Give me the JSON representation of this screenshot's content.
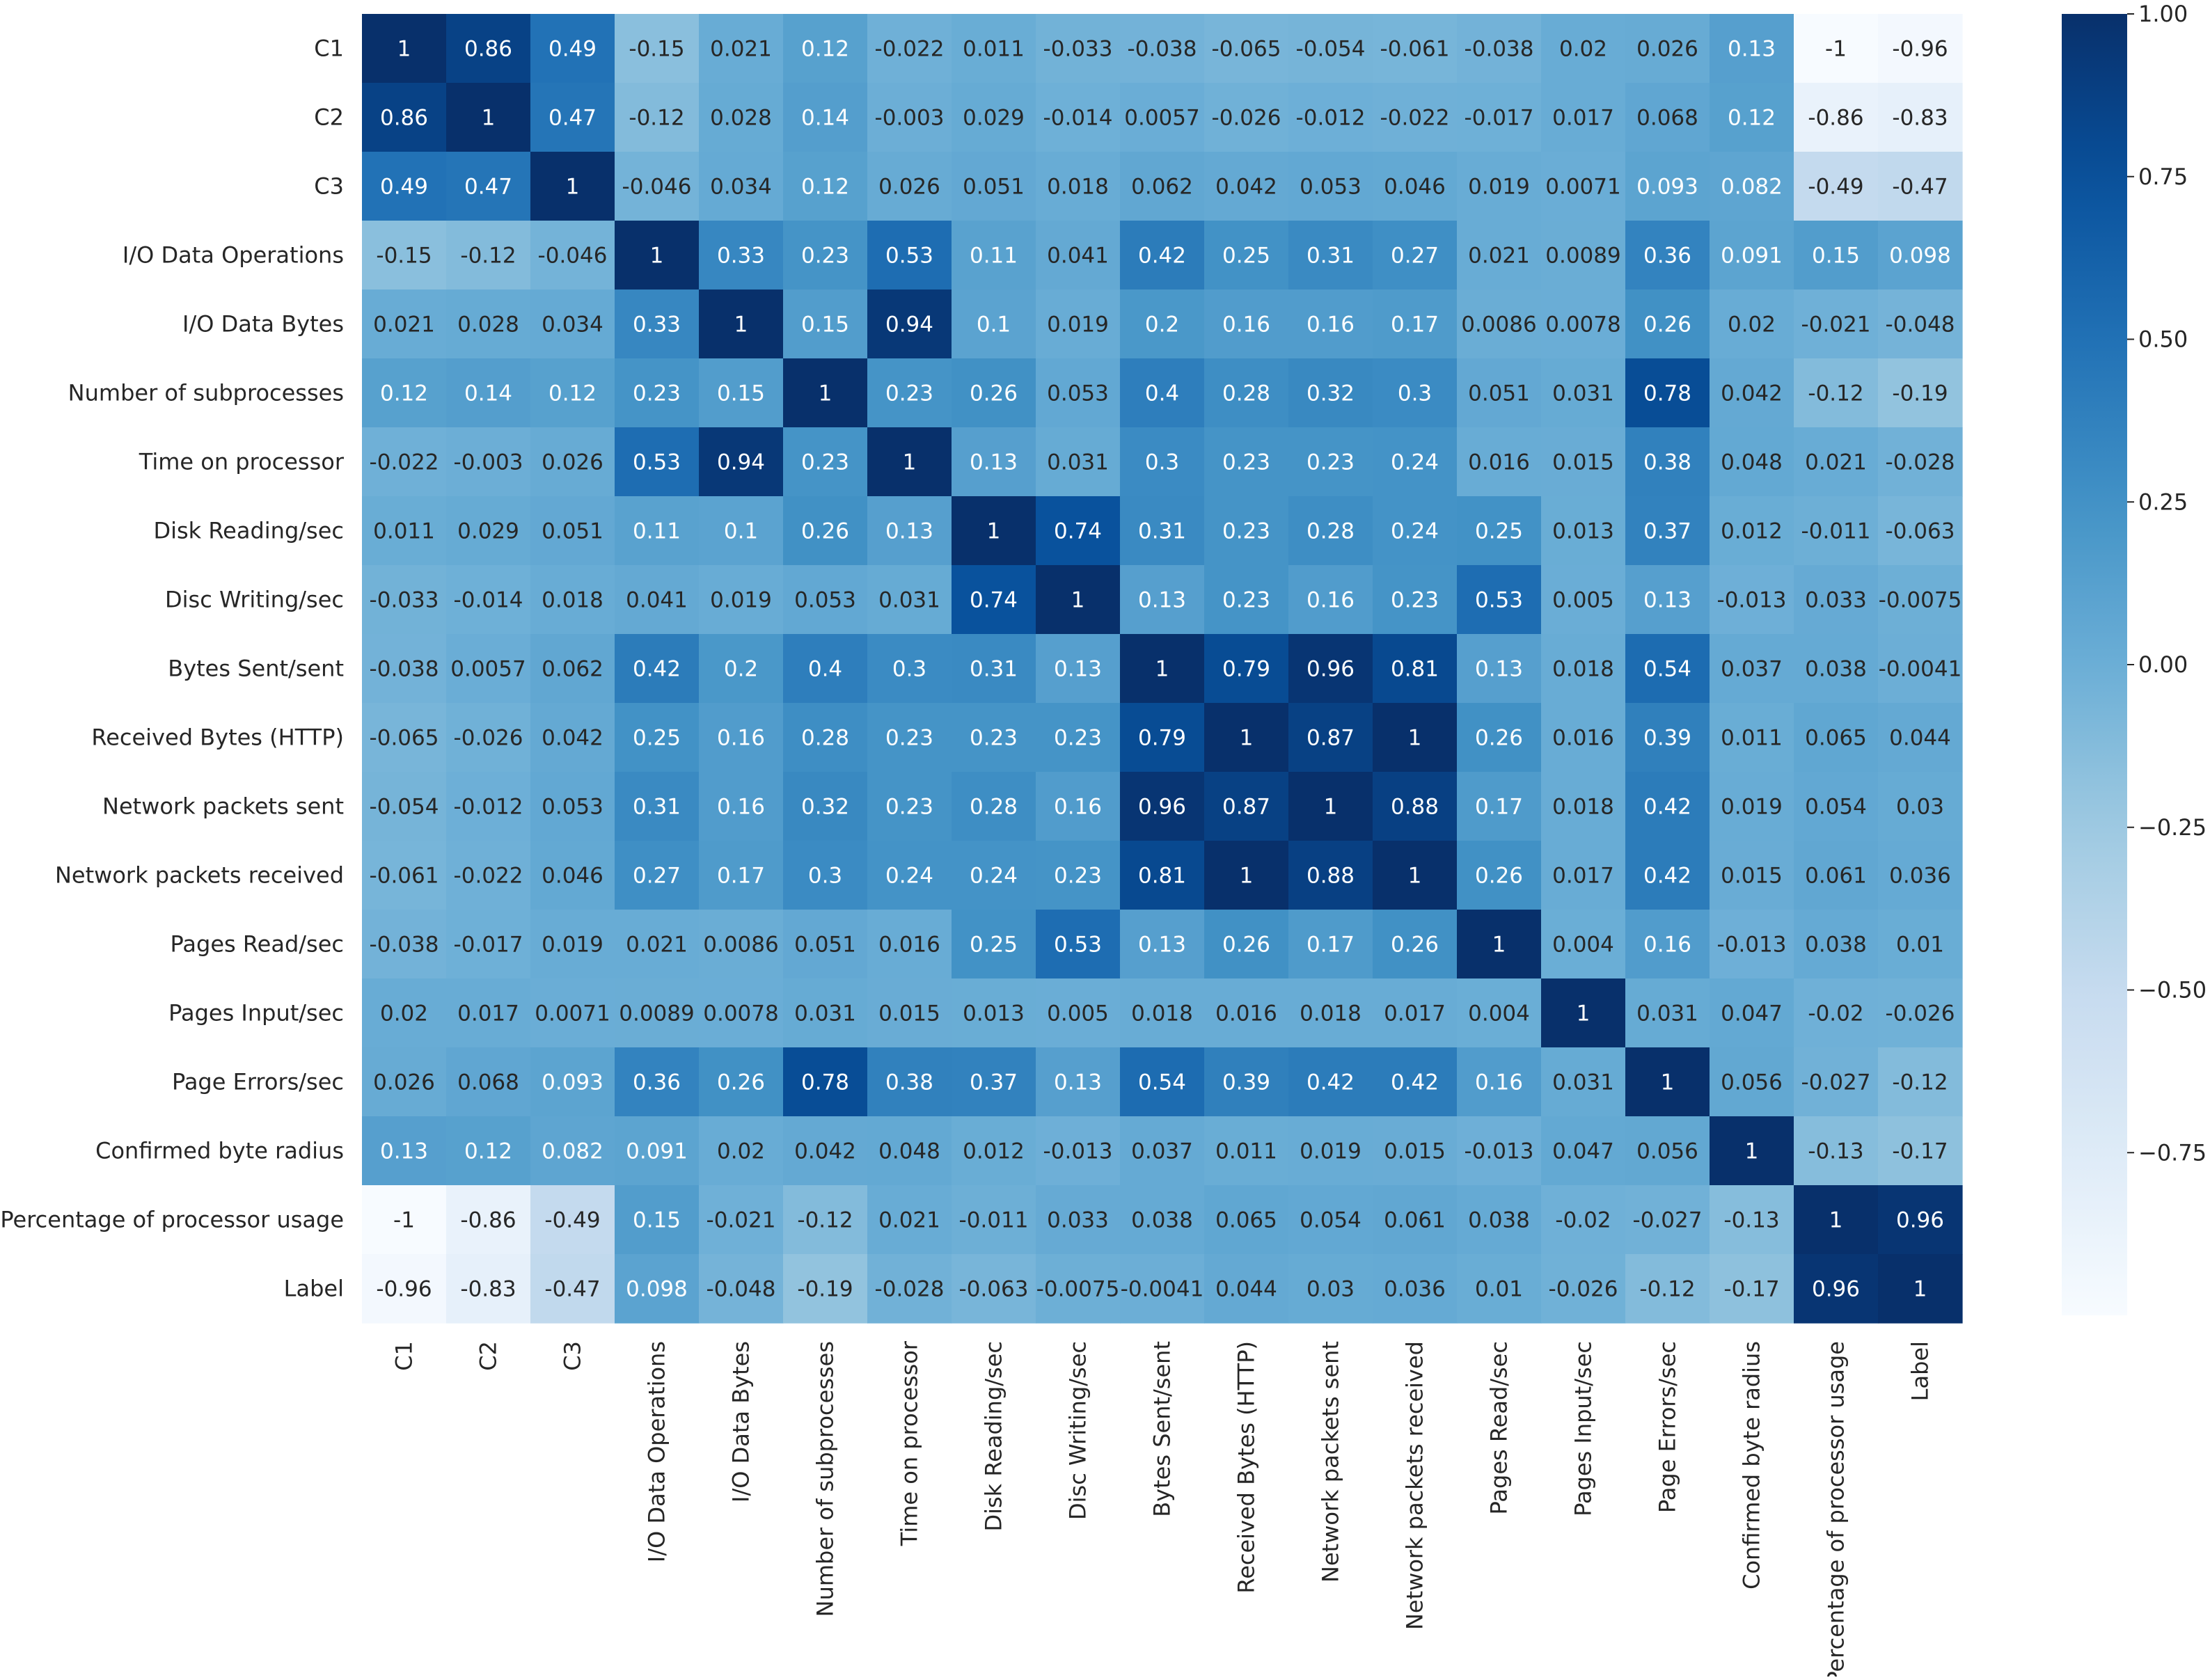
{
  "chart_data": {
    "type": "heatmap",
    "title": "",
    "xlabel": "",
    "ylabel": "",
    "variables": [
      "C1",
      "C2",
      "C3",
      "I/O Data Operations",
      "I/O Data Bytes",
      "Number of subprocesses",
      "Time on processor",
      "Disk Reading/sec",
      "Disc Writing/sec",
      "Bytes Sent/sent",
      "Received Bytes (HTTP)",
      "Network packets sent",
      "Network packets received",
      "Pages Read/sec",
      "Pages Input/sec",
      "Page Errors/sec",
      "Confirmed byte radius",
      "Percentage of processor usage",
      "Label"
    ],
    "matrix": [
      [
        1,
        0.86,
        0.49,
        -0.15,
        0.021,
        0.12,
        -0.022,
        0.011,
        -0.033,
        -0.038,
        -0.065,
        -0.054,
        -0.061,
        -0.038,
        0.02,
        0.026,
        0.13,
        -1,
        -0.96
      ],
      [
        0.86,
        1,
        0.47,
        -0.12,
        0.028,
        0.14,
        -0.003,
        0.029,
        -0.014,
        0.0057,
        -0.026,
        -0.012,
        -0.022,
        -0.017,
        0.017,
        0.068,
        0.12,
        -0.86,
        -0.83
      ],
      [
        0.49,
        0.47,
        1,
        -0.046,
        0.034,
        0.12,
        0.026,
        0.051,
        0.018,
        0.062,
        0.042,
        0.053,
        0.046,
        0.019,
        0.0071,
        0.093,
        0.082,
        -0.49,
        -0.47
      ],
      [
        -0.15,
        -0.12,
        -0.046,
        1,
        0.33,
        0.23,
        0.53,
        0.11,
        0.041,
        0.42,
        0.25,
        0.31,
        0.27,
        0.021,
        0.0089,
        0.36,
        0.091,
        0.15,
        0.098
      ],
      [
        0.021,
        0.028,
        0.034,
        0.33,
        1,
        0.15,
        0.94,
        0.1,
        0.019,
        0.2,
        0.16,
        0.16,
        0.17,
        0.0086,
        0.0078,
        0.26,
        0.02,
        -0.021,
        -0.048
      ],
      [
        0.12,
        0.14,
        0.12,
        0.23,
        0.15,
        1,
        0.23,
        0.26,
        0.053,
        0.4,
        0.28,
        0.32,
        0.3,
        0.051,
        0.031,
        0.78,
        0.042,
        -0.12,
        -0.19
      ],
      [
        -0.022,
        -0.003,
        0.026,
        0.53,
        0.94,
        0.23,
        1,
        0.13,
        0.031,
        0.3,
        0.23,
        0.23,
        0.24,
        0.016,
        0.015,
        0.38,
        0.048,
        0.021,
        -0.028
      ],
      [
        0.011,
        0.029,
        0.051,
        0.11,
        0.1,
        0.26,
        0.13,
        1,
        0.74,
        0.31,
        0.23,
        0.28,
        0.24,
        0.25,
        0.013,
        0.37,
        0.012,
        -0.011,
        -0.063
      ],
      [
        -0.033,
        -0.014,
        0.018,
        0.041,
        0.019,
        0.053,
        0.031,
        0.74,
        1,
        0.13,
        0.23,
        0.16,
        0.23,
        0.53,
        0.005,
        0.13,
        -0.013,
        0.033,
        -0.0075
      ],
      [
        -0.038,
        0.0057,
        0.062,
        0.42,
        0.2,
        0.4,
        0.3,
        0.31,
        0.13,
        1,
        0.79,
        0.96,
        0.81,
        0.13,
        0.018,
        0.54,
        0.037,
        0.038,
        -0.0041
      ],
      [
        -0.065,
        -0.026,
        0.042,
        0.25,
        0.16,
        0.28,
        0.23,
        0.23,
        0.23,
        0.79,
        1,
        0.87,
        1,
        0.26,
        0.016,
        0.39,
        0.011,
        0.065,
        0.044
      ],
      [
        -0.054,
        -0.012,
        0.053,
        0.31,
        0.16,
        0.32,
        0.23,
        0.28,
        0.16,
        0.96,
        0.87,
        1,
        0.88,
        0.17,
        0.018,
        0.42,
        0.019,
        0.054,
        0.03
      ],
      [
        -0.061,
        -0.022,
        0.046,
        0.27,
        0.17,
        0.3,
        0.24,
        0.24,
        0.23,
        0.81,
        1,
        0.88,
        1,
        0.26,
        0.017,
        0.42,
        0.015,
        0.061,
        0.036
      ],
      [
        -0.038,
        -0.017,
        0.019,
        0.021,
        0.0086,
        0.051,
        0.016,
        0.25,
        0.53,
        0.13,
        0.26,
        0.17,
        0.26,
        1,
        0.004,
        0.16,
        -0.013,
        0.038,
        0.01
      ],
      [
        0.02,
        0.017,
        0.0071,
        0.0089,
        0.0078,
        0.031,
        0.015,
        0.013,
        0.005,
        0.018,
        0.016,
        0.018,
        0.017,
        0.004,
        1,
        0.031,
        0.047,
        -0.02,
        -0.026
      ],
      [
        0.026,
        0.068,
        0.093,
        0.36,
        0.26,
        0.78,
        0.38,
        0.37,
        0.13,
        0.54,
        0.39,
        0.42,
        0.42,
        0.16,
        0.031,
        1,
        0.056,
        -0.027,
        -0.12
      ],
      [
        0.13,
        0.12,
        0.082,
        0.091,
        0.02,
        0.042,
        0.048,
        0.012,
        -0.013,
        0.037,
        0.011,
        0.019,
        0.015,
        -0.013,
        0.047,
        0.056,
        1,
        -0.13,
        -0.17
      ],
      [
        -1,
        -0.86,
        -0.49,
        0.15,
        -0.021,
        -0.12,
        0.021,
        -0.011,
        0.033,
        0.038,
        0.065,
        0.054,
        0.061,
        0.038,
        -0.02,
        -0.027,
        -0.13,
        1,
        0.96
      ],
      [
        -0.96,
        -0.83,
        -0.47,
        0.098,
        -0.048,
        -0.19,
        -0.028,
        -0.063,
        -0.0075,
        -0.0041,
        0.044,
        0.03,
        0.036,
        0.01,
        -0.026,
        -0.12,
        -0.17,
        0.96,
        1
      ]
    ],
    "colormap": "Blues",
    "vmin": -1,
    "vmax": 1,
    "colorbar_ticks": [
      1.0,
      0.75,
      0.5,
      0.25,
      0.0,
      -0.25,
      -0.5,
      -0.75
    ],
    "colorbar_tick_labels": [
      "1.00",
      "0.75",
      "0.50",
      "0.25",
      "0.00",
      "−0.25",
      "−0.50",
      "−0.75"
    ],
    "grid": false,
    "legend": "colorbar-right"
  }
}
